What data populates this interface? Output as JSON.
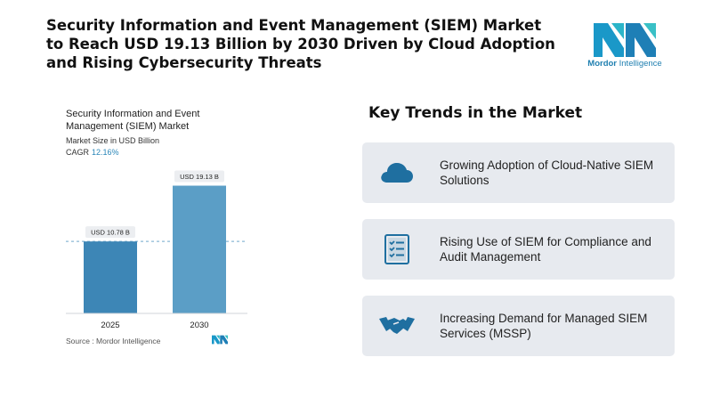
{
  "headline": "Security Information and Event Management (SIEM) Market to Reach USD 19.13 Billion by 2030 Driven by Cloud Adoption and Rising Cybersecurity Threats",
  "brand": {
    "name_bold": "Mordor",
    "name_light": " Intelligence",
    "color": "#1f8fbf"
  },
  "chart": {
    "title": "Security Information and Event Management (SIEM) Market",
    "subtitle": "Market Size in USD Billion",
    "cagr_label": "CAGR",
    "cagr_value": "12.16%",
    "source": "Source : Mordor Intelligence"
  },
  "chart_data": {
    "type": "bar",
    "categories": [
      "2025",
      "2030"
    ],
    "values": [
      10.78,
      19.13
    ],
    "data_labels": [
      "USD 10.78 B",
      "USD 19.13 B"
    ],
    "title": "Security Information and Event Management (SIEM) Market",
    "ylabel": "Market Size in USD Billion",
    "xlabel": "",
    "ylim": [
      0,
      20
    ],
    "grid": false,
    "reference_line": "dashed line at 2025 value",
    "colors": {
      "bar_2025": "#3d86b6",
      "bar_2030": "#5b9ec6",
      "dashed": "#8cb8d6"
    }
  },
  "trends": {
    "title": "Key Trends in the Market",
    "items": [
      {
        "icon": "cloud-icon",
        "text": "Growing Adoption of Cloud-Native SIEM Solutions"
      },
      {
        "icon": "checklist-icon",
        "text": "Rising Use of SIEM for Compliance and Audit Management"
      },
      {
        "icon": "handshake-icon",
        "text": "Increasing Demand for Managed SIEM Services (MSSP)"
      }
    ],
    "icon_color": "#1f6fa0"
  }
}
